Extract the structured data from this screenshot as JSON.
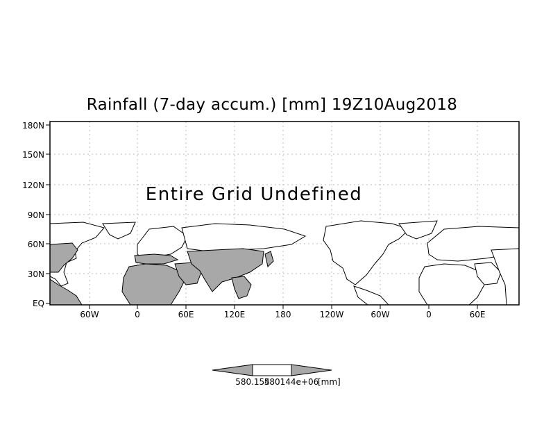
{
  "title": "Rainfall (7-day accum.) [mm] 19Z10Aug2018",
  "message": "Entire Grid Undefined",
  "y_ticks": [
    "180N",
    "150N",
    "120N",
    "90N",
    "60N",
    "30N",
    "EQ"
  ],
  "x_ticks": [
    "60W",
    "0",
    "60E",
    "120E",
    "180",
    "120W",
    "60W",
    "0",
    "60E"
  ],
  "colorbar": {
    "label_left": "580.154",
    "label_right": "580144e+06",
    "unit": "[mm]"
  },
  "colors": {
    "land": "#a8a8a8",
    "ocean": "#ffffff",
    "outline": "#000000"
  }
}
